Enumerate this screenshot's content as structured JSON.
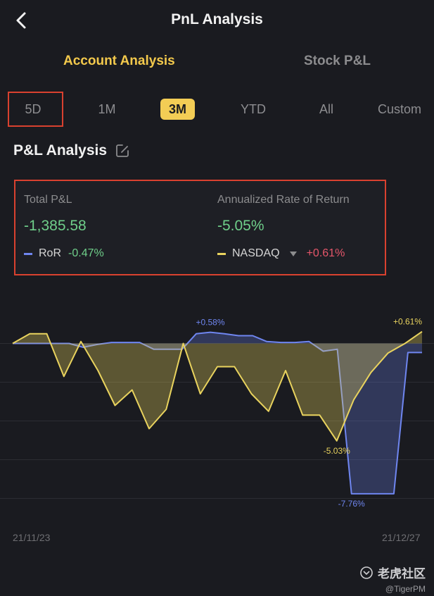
{
  "header": {
    "title": "PnL Analysis"
  },
  "top_tabs": {
    "account": "Account Analysis",
    "stock": "Stock P&L"
  },
  "periods": [
    "5D",
    "1M",
    "3M",
    "YTD",
    "All",
    "Custom"
  ],
  "active_period": "3M",
  "section": {
    "title": "P&L Analysis"
  },
  "summary": {
    "total_label": "Total P&L",
    "total_value": "-1,385.58",
    "annual_label": "Annualized Rate of Return",
    "annual_value": "-5.05%",
    "ror_name": "RoR",
    "ror_value": "-0.47%",
    "benchmark_name": "NASDAQ",
    "benchmark_value": "+0.61%"
  },
  "colors": {
    "accent": "#f3c94c",
    "positive": "#6fcf8a",
    "negative": "#e5566a",
    "ror_line": "#6f86f0",
    "nasdaq_line": "#e9d35e"
  },
  "chart_data": {
    "type": "line",
    "x_start": "21/11/23",
    "x_end": "21/12/27",
    "series": [
      {
        "name": "RoR",
        "values": [
          0,
          0,
          0,
          0,
          0,
          -0.2,
          -0.05,
          0.05,
          0.05,
          0.05,
          -0.3,
          -0.3,
          -0.3,
          0.5,
          0.58,
          0.5,
          0.4,
          0.4,
          0.1,
          0.05,
          0.05,
          0.1,
          -0.4,
          -0.3,
          -7.76,
          -7.76,
          -7.76,
          -7.76,
          -0.47,
          -0.47
        ]
      },
      {
        "name": "NASDAQ",
        "values": [
          0,
          0.5,
          0.5,
          -1.7,
          0.1,
          -1.4,
          -3.2,
          -2.4,
          -4.4,
          -3.4,
          0,
          -2.6,
          -1.2,
          -1.2,
          -2.6,
          -3.5,
          -1.4,
          -3.7,
          -3.7,
          -5.03,
          -2.9,
          -1.5,
          -0.5,
          0,
          0.61
        ]
      }
    ],
    "annotations": [
      {
        "text": "+0.58%",
        "series": "RoR",
        "type": "max"
      },
      {
        "text": "-7.76%",
        "series": "RoR",
        "type": "min"
      },
      {
        "text": "-5.03%",
        "series": "NASDAQ",
        "type": "min"
      },
      {
        "text": "+0.61%",
        "series": "NASDAQ",
        "type": "last"
      }
    ],
    "ylim": [
      -9.0,
      1.0
    ],
    "grid": true
  },
  "watermark": {
    "logo_text": "老虎社区",
    "handle": "@TigerPM"
  }
}
